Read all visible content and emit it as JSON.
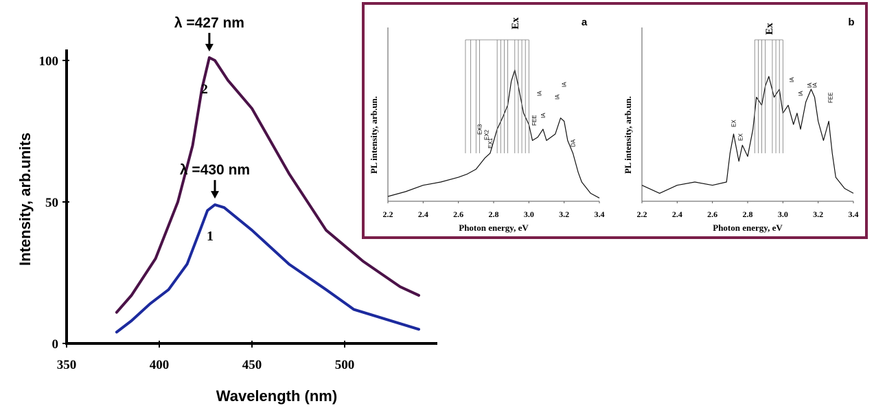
{
  "chart_data": [
    {
      "type": "line",
      "xlabel": "Wavelength (nm)",
      "ylabel": "Intensity, arb.units",
      "xlim": [
        350,
        550
      ],
      "ylim": [
        0,
        100
      ],
      "xticks": [
        350,
        400,
        450,
        500
      ],
      "yticks": [
        0,
        50,
        100
      ],
      "series": [
        {
          "name": "2",
          "color": "#4b1248",
          "points": [
            [
              377,
              11
            ],
            [
              385,
              17
            ],
            [
              398,
              30
            ],
            [
              410,
              50
            ],
            [
              418,
              70
            ],
            [
              423,
              90
            ],
            [
              427,
              101
            ],
            [
              430,
              100
            ],
            [
              437,
              93
            ],
            [
              450,
              83
            ],
            [
              470,
              60
            ],
            [
              490,
              40
            ],
            [
              510,
              29
            ],
            [
              530,
              20
            ],
            [
              540,
              17
            ]
          ]
        },
        {
          "name": "1",
          "color": "#1c2a9e",
          "points": [
            [
              377,
              4
            ],
            [
              385,
              8
            ],
            [
              395,
              14
            ],
            [
              405,
              19
            ],
            [
              415,
              28
            ],
            [
              422,
              40
            ],
            [
              426,
              47
            ],
            [
              430,
              49
            ],
            [
              435,
              48
            ],
            [
              450,
              40
            ],
            [
              470,
              28
            ],
            [
              490,
              19
            ],
            [
              505,
              12
            ],
            [
              520,
              9
            ],
            [
              540,
              5
            ]
          ]
        }
      ],
      "annotations": [
        {
          "text": "λ =427 nm",
          "x": 427,
          "y": 101
        },
        {
          "text": "λ =430 nm",
          "x": 430,
          "y": 49
        }
      ]
    },
    {
      "type": "line",
      "panel": "a",
      "xlabel": "Photon energy, eV",
      "ylabel": "PL intensity, arb.un.",
      "xlim": [
        2.2,
        3.4
      ],
      "ylim": [
        0,
        1
      ],
      "xticks": [
        "2.2",
        "2.4",
        "2.6",
        "2.8",
        "3.0",
        "3.2",
        "3.4"
      ],
      "series": [
        {
          "name": "a",
          "points": [
            [
              2.2,
              0.03
            ],
            [
              2.3,
              0.06
            ],
            [
              2.4,
              0.1
            ],
            [
              2.5,
              0.12
            ],
            [
              2.6,
              0.15
            ],
            [
              2.65,
              0.17
            ],
            [
              2.7,
              0.2
            ],
            [
              2.75,
              0.27
            ],
            [
              2.78,
              0.3
            ],
            [
              2.82,
              0.45
            ],
            [
              2.85,
              0.52
            ],
            [
              2.88,
              0.6
            ],
            [
              2.9,
              0.75
            ],
            [
              2.92,
              0.82
            ],
            [
              2.94,
              0.72
            ],
            [
              2.97,
              0.55
            ],
            [
              3.0,
              0.48
            ],
            [
              3.02,
              0.38
            ],
            [
              3.05,
              0.4
            ],
            [
              3.08,
              0.45
            ],
            [
              3.1,
              0.38
            ],
            [
              3.15,
              0.42
            ],
            [
              3.18,
              0.52
            ],
            [
              3.2,
              0.5
            ],
            [
              3.22,
              0.38
            ],
            [
              3.25,
              0.3
            ],
            [
              3.28,
              0.18
            ],
            [
              3.3,
              0.12
            ],
            [
              3.35,
              0.05
            ],
            [
              3.4,
              0.02
            ]
          ]
        }
      ],
      "peak_labels": [
        "Ex",
        "EX3",
        "EX2",
        "EX1",
        "FEE",
        "IA",
        "IA",
        "IA",
        "IA",
        "DA"
      ]
    },
    {
      "type": "line",
      "panel": "b",
      "xlabel": "Photon energy, eV",
      "ylabel": "PL intensity, arb.un.",
      "xlim": [
        2.2,
        3.4
      ],
      "ylim": [
        0,
        1
      ],
      "xticks": [
        "2.2",
        "2.4",
        "2.6",
        "2.8",
        "3.0",
        "3.2",
        "3.4"
      ],
      "series": [
        {
          "name": "b",
          "points": [
            [
              2.2,
              0.1
            ],
            [
              2.3,
              0.05
            ],
            [
              2.4,
              0.1
            ],
            [
              2.5,
              0.12
            ],
            [
              2.6,
              0.1
            ],
            [
              2.68,
              0.12
            ],
            [
              2.7,
              0.3
            ],
            [
              2.72,
              0.42
            ],
            [
              2.75,
              0.25
            ],
            [
              2.77,
              0.35
            ],
            [
              2.8,
              0.28
            ],
            [
              2.83,
              0.45
            ],
            [
              2.85,
              0.65
            ],
            [
              2.88,
              0.6
            ],
            [
              2.9,
              0.72
            ],
            [
              2.92,
              0.78
            ],
            [
              2.95,
              0.65
            ],
            [
              2.98,
              0.7
            ],
            [
              3.0,
              0.55
            ],
            [
              3.03,
              0.6
            ],
            [
              3.06,
              0.48
            ],
            [
              3.08,
              0.55
            ],
            [
              3.1,
              0.45
            ],
            [
              3.13,
              0.62
            ],
            [
              3.16,
              0.7
            ],
            [
              3.18,
              0.65
            ],
            [
              3.2,
              0.5
            ],
            [
              3.23,
              0.38
            ],
            [
              3.26,
              0.5
            ],
            [
              3.28,
              0.3
            ],
            [
              3.3,
              0.15
            ],
            [
              3.35,
              0.08
            ],
            [
              3.4,
              0.05
            ]
          ]
        }
      ],
      "peak_labels": [
        "Ex",
        "EX",
        "EX",
        "IA",
        "IA",
        "IA",
        "IA",
        "FEE"
      ]
    }
  ]
}
